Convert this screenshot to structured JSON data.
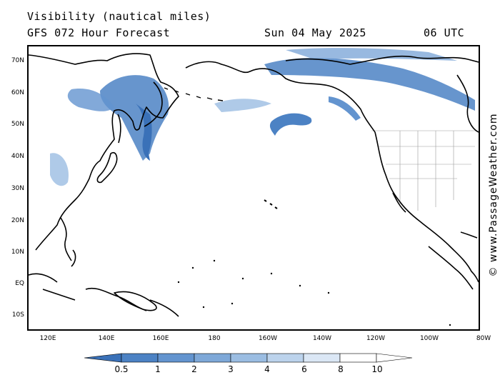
{
  "header": {
    "title": "Visibility (nautical miles)",
    "model": "GFS 072 Hour Forecast",
    "date": "Sun 04 May 2025",
    "time": "06 UTC"
  },
  "map": {
    "lat_labels": [
      "70N",
      "60N",
      "50N",
      "40N",
      "30N",
      "20N",
      "10N",
      "EQ",
      "10S"
    ],
    "lon_labels": [
      "120E",
      "140E",
      "160E",
      "180",
      "160W",
      "140W",
      "120W",
      "100W",
      "80W"
    ],
    "land_color": "#ffffff",
    "coast_color": "#000000",
    "border_color": "#9a9a9a"
  },
  "legend": {
    "labels": [
      "0.5",
      "1",
      "2",
      "3",
      "4",
      "6",
      "8",
      "10"
    ],
    "colors": [
      "#3a71b8",
      "#4c82c4",
      "#6394cf",
      "#7ea8d8",
      "#9bbde2",
      "#bcd3ec",
      "#dbe7f5",
      "#ffffff"
    ]
  },
  "watermark": "© www.PassageWeather.com"
}
